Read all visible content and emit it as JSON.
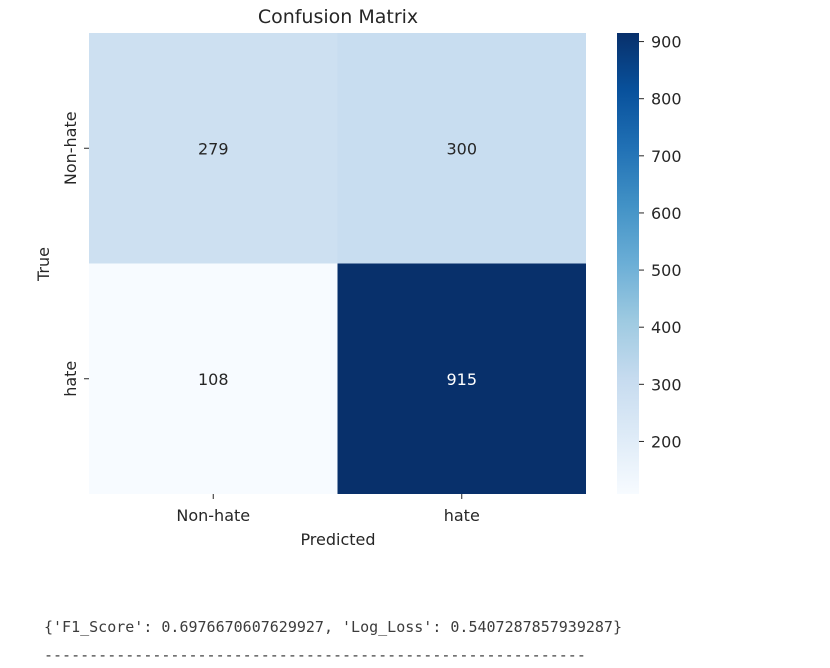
{
  "chart_data": {
    "type": "heatmap",
    "title": "Confusion Matrix",
    "xlabel": "Predicted",
    "ylabel": "True",
    "x_categories": [
      "Non-hate",
      "hate"
    ],
    "y_categories": [
      "Non-hate",
      "hate"
    ],
    "values": [
      [
        279,
        300
      ],
      [
        108,
        915
      ]
    ],
    "colormap": "Blues",
    "colorbar": {
      "min": 108,
      "max": 915,
      "ticks": [
        200,
        300,
        400,
        500,
        600,
        700,
        800,
        900
      ]
    }
  },
  "output": {
    "metrics_text": "{'F1_Score': 0.6976670607629927, 'Log_Loss': 0.5407287857939287}",
    "divider_text": "------------------------------------------------------------"
  }
}
